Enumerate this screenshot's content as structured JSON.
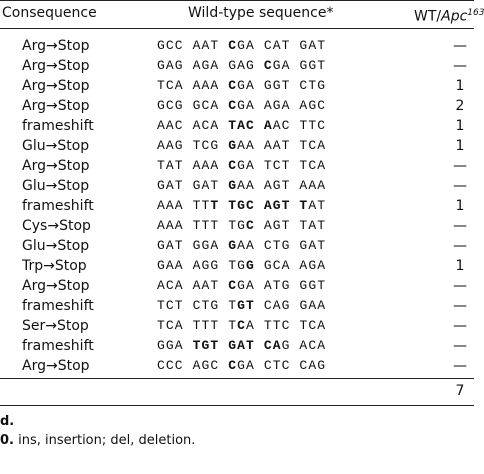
{
  "header": {
    "consequence": "Consequence",
    "sequence": "Wild-type sequence*",
    "wt": "WT/",
    "apc": "Apc",
    "sup": "163"
  },
  "table": {
    "rows": [
      {
        "consequence": "Arg→Stop",
        "sequence": [
          {
            "t": "GCC AAT "
          },
          {
            "t": "C",
            "b": true
          },
          {
            "t": "GA CAT GAT"
          }
        ],
        "count": "—"
      },
      {
        "consequence": "Arg→Stop",
        "sequence": [
          {
            "t": "GAG AGA GAG "
          },
          {
            "t": "C",
            "b": true
          },
          {
            "t": "GA GGT"
          }
        ],
        "count": "—"
      },
      {
        "consequence": "Arg→Stop",
        "sequence": [
          {
            "t": "TCA AAA "
          },
          {
            "t": "C",
            "b": true
          },
          {
            "t": "GA GGT CTG"
          }
        ],
        "count": "1"
      },
      {
        "consequence": "Arg→Stop",
        "sequence": [
          {
            "t": "GCG GCA "
          },
          {
            "t": "C",
            "b": true
          },
          {
            "t": "GA AGA AGC"
          }
        ],
        "count": "2"
      },
      {
        "consequence": "frameshift",
        "sequence": [
          {
            "t": "AAC ACA "
          },
          {
            "t": "TAC A",
            "b": true
          },
          {
            "t": "AC TTC"
          }
        ],
        "count": "1"
      },
      {
        "consequence": "Glu→Stop",
        "sequence": [
          {
            "t": "AAG TCG "
          },
          {
            "t": "G",
            "b": true
          },
          {
            "t": "AA AAT TCA"
          }
        ],
        "count": "1"
      },
      {
        "consequence": "Arg→Stop",
        "sequence": [
          {
            "t": "TAT AAA "
          },
          {
            "t": "C",
            "b": true
          },
          {
            "t": "GA TCT TCA"
          }
        ],
        "count": "—"
      },
      {
        "consequence": "Glu→Stop",
        "sequence": [
          {
            "t": "GAT GAT "
          },
          {
            "t": "G",
            "b": true
          },
          {
            "t": "AA AGT AAA"
          }
        ],
        "count": "—"
      },
      {
        "consequence": "frameshift",
        "sequence": [
          {
            "t": "AAA TT"
          },
          {
            "t": "T TGC AGT T",
            "b": true
          },
          {
            "t": "AT"
          }
        ],
        "count": "1"
      },
      {
        "consequence": "Cys→Stop",
        "sequence": [
          {
            "t": "AAA TTT TG"
          },
          {
            "t": "C",
            "b": true
          },
          {
            "t": " AGT TAT"
          }
        ],
        "count": "—"
      },
      {
        "consequence": "Glu→Stop",
        "sequence": [
          {
            "t": "GAT GGA "
          },
          {
            "t": "G",
            "b": true
          },
          {
            "t": "AA CTG GAT"
          }
        ],
        "count": "—"
      },
      {
        "consequence": "Trp→Stop",
        "sequence": [
          {
            "t": "GAA AGG TG"
          },
          {
            "t": "G",
            "b": true
          },
          {
            "t": " GCA AGA"
          }
        ],
        "count": "1"
      },
      {
        "consequence": "Arg→Stop",
        "sequence": [
          {
            "t": "ACA AAT "
          },
          {
            "t": "C",
            "b": true
          },
          {
            "t": "GA ATG GGT"
          }
        ],
        "count": "—"
      },
      {
        "consequence": "frameshift",
        "sequence": [
          {
            "t": "TCT CTG T"
          },
          {
            "t": "GT",
            "b": true
          },
          {
            "t": " CAG GAA"
          }
        ],
        "count": "—"
      },
      {
        "consequence": "Ser→Stop",
        "sequence": [
          {
            "t": "TCA TTT T"
          },
          {
            "t": "C",
            "b": true
          },
          {
            "t": "A TTC TCA"
          }
        ],
        "count": "—"
      },
      {
        "consequence": "frameshift",
        "sequence": [
          {
            "t": "GGA "
          },
          {
            "t": "TGT GAT CA",
            "b": true
          },
          {
            "t": "G ACA"
          }
        ],
        "count": "—"
      },
      {
        "consequence": "Arg→Stop",
        "sequence": [
          {
            "t": "CCC AGC "
          },
          {
            "t": "C",
            "b": true
          },
          {
            "t": "GA CTC CAG"
          }
        ],
        "count": "—"
      }
    ],
    "total": "7"
  },
  "notes": [
    {
      "lead": "d."
    },
    {
      "lead": "0.",
      "text": " ins, insertion; del, deletion."
    }
  ]
}
